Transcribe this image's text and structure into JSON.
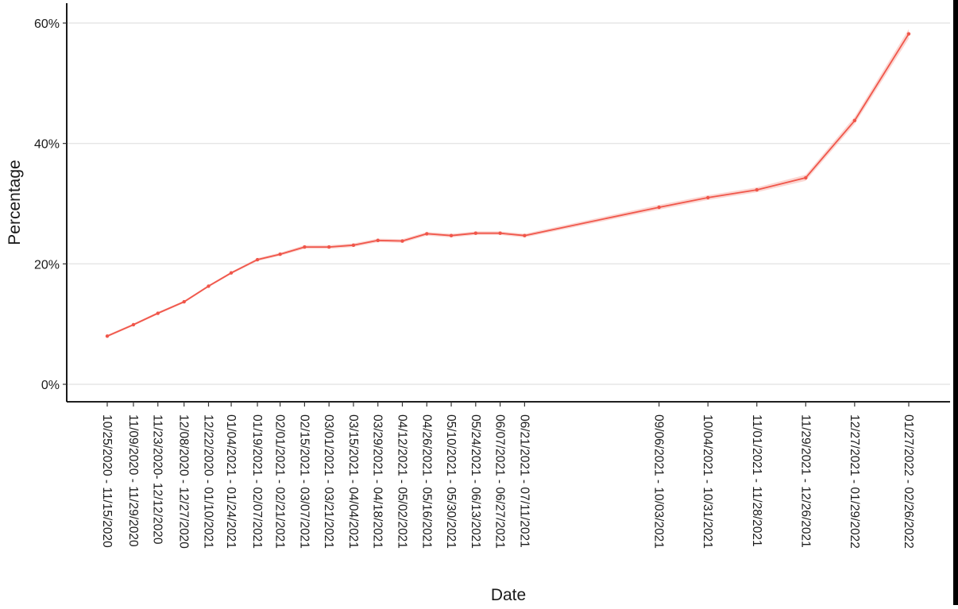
{
  "chart_data": {
    "type": "line",
    "title": "",
    "xlabel": "Date",
    "ylabel": "Percentage",
    "ylim": [
      -3,
      63
    ],
    "yticks": [
      0,
      20,
      40,
      60
    ],
    "ytick_labels": [
      "0%",
      "20%",
      "40%",
      "60%"
    ],
    "grid": "horizontal major",
    "legend": "none",
    "line_color": "#f0564a",
    "band_color": "#f8b4ad",
    "series": [
      {
        "x": [
          "10/25/2020 - 11/15/2020",
          "11/09/2020 - 11/29/2020",
          "11/23/2020- 12/12/2020",
          "12/08/2020 - 12/27/2020",
          "12/22/2020 - 01/10/2021",
          "01/04/2021 - 01/24/2021",
          "01/19/2021 - 02/07/2021",
          "02/01/2021 - 02/21/2021",
          "02/15/2021 - 03/07/2021",
          "03/01/2021 - 03/21/2021",
          "03/15/2021 - 04/04/2021",
          "03/29/2021 - 04/18/2021",
          "04/12/2021 - 05/02/2021",
          "04/26/2021 - 05/16/2021",
          "05/10/2021 - 05/30/2021",
          "05/24/2021 - 06/13/2021",
          "06/07/2021 - 06/27/2021",
          "06/21/2021 - 07/11/2021",
          "09/06/2021 - 10/03/2021",
          "10/04/2021 - 10/31/2021",
          "11/01/2021 - 11/28/2021",
          "11/29/2021 - 12/26/2021",
          "12/27/2021 - 01/29/2022",
          "01/27/2022 - 02/26/2022"
        ],
        "values": [
          8.0,
          9.9,
          11.8,
          13.7,
          16.3,
          18.5,
          20.7,
          21.6,
          22.8,
          22.8,
          23.1,
          23.9,
          23.8,
          25.0,
          24.7,
          25.1,
          25.1,
          24.7,
          29.4,
          31.0,
          32.3,
          34.3,
          43.8,
          58.2
        ],
        "ci_halfwidth": [
          0.2,
          0.2,
          0.2,
          0.2,
          0.2,
          0.2,
          0.25,
          0.25,
          0.3,
          0.3,
          0.3,
          0.3,
          0.3,
          0.3,
          0.3,
          0.3,
          0.3,
          0.3,
          0.4,
          0.4,
          0.4,
          0.5,
          0.6,
          0.8
        ]
      }
    ]
  }
}
